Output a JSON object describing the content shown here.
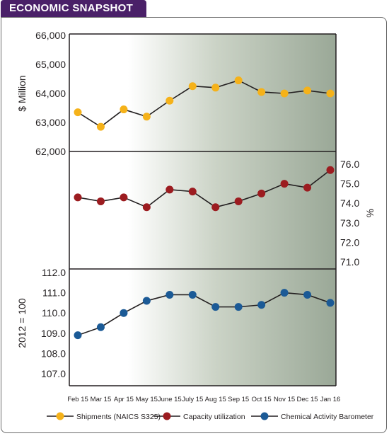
{
  "header": {
    "title": "ECONOMIC SNAPSHOT"
  },
  "colors": {
    "header_bg": "#4a2068",
    "shipments": "#f5b21a",
    "capacity": "#9c1c20",
    "cab": "#1b5a96"
  },
  "chart_data": {
    "type": "line",
    "categories": [
      "Feb 15",
      "Mar 15",
      "Apr 15",
      "May 15",
      "June 15",
      "July 15",
      "Aug 15",
      "Sep 15",
      "Oct 15",
      "Nov 15",
      "Dec 15",
      "Jan 16"
    ],
    "panels": [
      {
        "name": "shipments",
        "ylabel": "$ Million",
        "axis_side": "left",
        "ylim": [
          62000,
          66000
        ],
        "ticks": [
          "66,000",
          "65,000",
          "64,000",
          "63,000",
          "62,000"
        ],
        "tick_values": [
          66000,
          65000,
          64000,
          63000,
          62000
        ]
      },
      {
        "name": "capacity",
        "ylabel": "%",
        "axis_side": "right",
        "ylim": [
          71.0,
          76.0
        ],
        "ticks": [
          "76.0",
          "75.0",
          "74.0",
          "73.0",
          "72.0",
          "71.0"
        ],
        "tick_values": [
          76.0,
          75.0,
          74.0,
          73.0,
          72.0,
          71.0
        ]
      },
      {
        "name": "cab",
        "ylabel": "2012 = 100",
        "axis_side": "left",
        "ylim": [
          107.0,
          112.0
        ],
        "ticks": [
          "112.0",
          "111.0",
          "110.0",
          "109.0",
          "108.0",
          "107.0"
        ],
        "tick_values": [
          112.0,
          111.0,
          110.0,
          109.0,
          108.0,
          107.0
        ]
      }
    ],
    "series": [
      {
        "name": "Shipments (NAICS S325)",
        "panel": 0,
        "color": "#f5b21a",
        "values": [
          63350,
          62850,
          63450,
          63200,
          63750,
          64250,
          64200,
          64450,
          64050,
          64000,
          64100,
          64000
        ]
      },
      {
        "name": "Capacity utilization",
        "panel": 1,
        "color": "#9c1c20",
        "values": [
          74.3,
          74.1,
          74.3,
          73.8,
          74.7,
          74.6,
          73.8,
          74.1,
          74.5,
          75.0,
          74.8,
          75.7
        ]
      },
      {
        "name": "Chemical Activity Barometer",
        "panel": 2,
        "color": "#1b5a96",
        "values": [
          108.9,
          109.3,
          110.0,
          110.6,
          110.9,
          110.9,
          110.3,
          110.3,
          110.4,
          111.0,
          110.9,
          110.5
        ]
      }
    ],
    "legend_position": "bottom"
  }
}
